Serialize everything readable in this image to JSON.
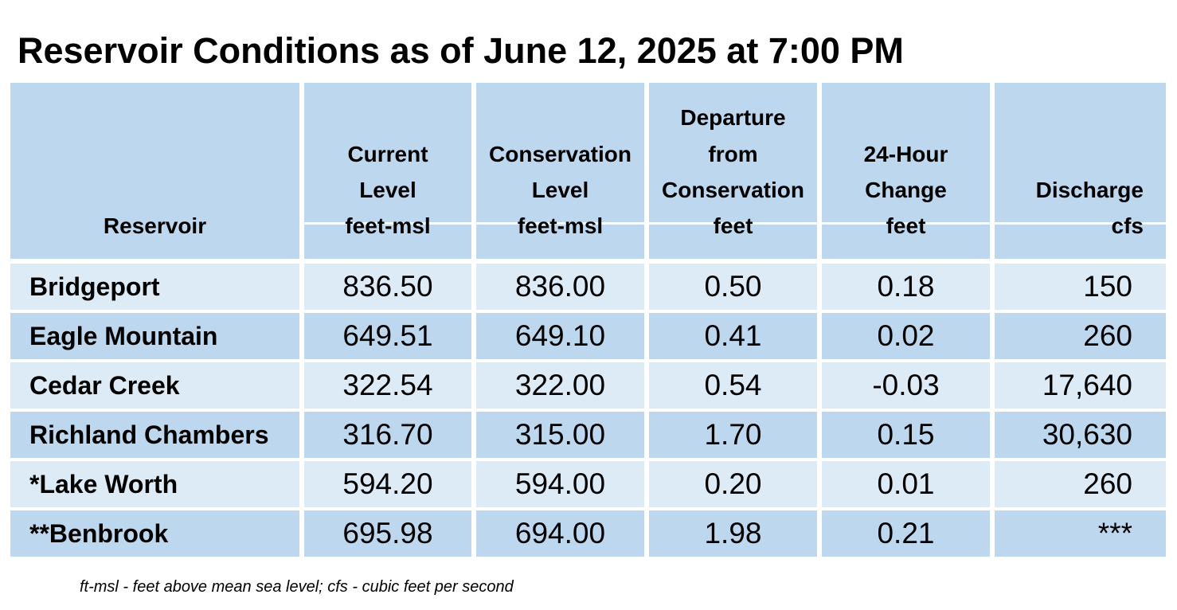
{
  "title": "Reservoir Conditions as of June 12, 2025 at 7:00 PM",
  "columns": [
    {
      "lines": [
        "",
        "",
        "",
        "Reservoir"
      ]
    },
    {
      "lines": [
        "",
        "Current",
        "Level",
        "feet-msl"
      ]
    },
    {
      "lines": [
        "",
        "Conservation",
        "Level",
        "feet-msl"
      ]
    },
    {
      "lines": [
        "Departure",
        "from",
        "Conservation",
        "feet"
      ]
    },
    {
      "lines": [
        "",
        "24-Hour",
        "Change",
        "feet"
      ]
    },
    {
      "lines": [
        "",
        "",
        "Discharge",
        "cfs"
      ]
    }
  ],
  "rows": [
    {
      "name": "Bridgeport",
      "current": "836.50",
      "conservation": "836.00",
      "departure": "0.50",
      "change": "0.18",
      "discharge": "150"
    },
    {
      "name": "Eagle Mountain",
      "current": "649.51",
      "conservation": "649.10",
      "departure": "0.41",
      "change": "0.02",
      "discharge": "260"
    },
    {
      "name": "Cedar Creek",
      "current": "322.54",
      "conservation": "322.00",
      "departure": "0.54",
      "change": "-0.03",
      "discharge": "17,640"
    },
    {
      "name": "Richland Chambers",
      "current": "316.70",
      "conservation": "315.00",
      "departure": "1.70",
      "change": "0.15",
      "discharge": "30,630"
    },
    {
      "name": "*Lake Worth",
      "current": "594.20",
      "conservation": "594.00",
      "departure": "0.20",
      "change": "0.01",
      "discharge": "260"
    },
    {
      "name": "**Benbrook",
      "current": "695.98",
      "conservation": "694.00",
      "departure": "1.98",
      "change": "0.21",
      "discharge": "***"
    }
  ],
  "footnote": "ft-msl - feet above mean sea level; cfs - cubic feet per second",
  "colors": {
    "header": "#bdd7ee",
    "row_light": "#ddebf7",
    "row_dark": "#bdd7ee"
  }
}
